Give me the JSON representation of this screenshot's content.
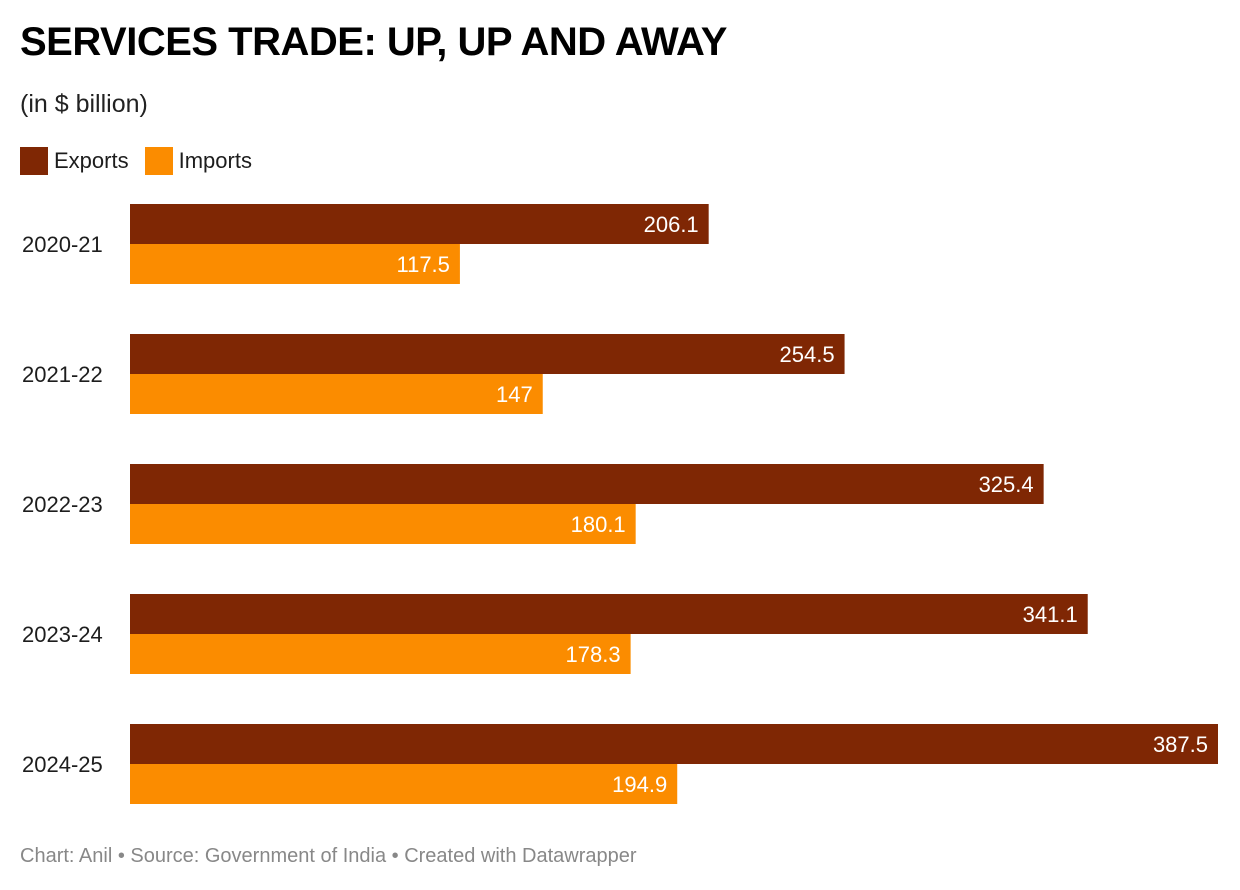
{
  "title": "SERVICES TRADE: UP, UP AND AWAY",
  "subtitle": "(in $ billion)",
  "legend": [
    {
      "label": "Exports",
      "color": "#7f2704"
    },
    {
      "label": "Imports",
      "color": "#fb8c00"
    }
  ],
  "footer": "Chart: Anil • Source: Government of India • Created with Datawrapper",
  "chart_data": {
    "type": "bar",
    "orientation": "horizontal",
    "title": "SERVICES TRADE: UP, UP AND AWAY",
    "subtitle": "(in $ billion)",
    "categories": [
      "2020-21",
      "2021-22",
      "2022-23",
      "2023-24",
      "2024-25"
    ],
    "series": [
      {
        "name": "Exports",
        "color": "#7f2704",
        "values": [
          206.1,
          254.5,
          325.4,
          341.1,
          387.5
        ],
        "labels": [
          "206.1",
          "254.5",
          "325.4",
          "341.1",
          "387.5"
        ]
      },
      {
        "name": "Imports",
        "color": "#fb8c00",
        "values": [
          117.5,
          147,
          180.1,
          178.3,
          194.9
        ],
        "labels": [
          "117.5",
          "147",
          "180.1",
          "178.3",
          "194.9"
        ]
      }
    ],
    "xlim": [
      0,
      387.5
    ],
    "grid": false,
    "legend_position": "top-left"
  }
}
